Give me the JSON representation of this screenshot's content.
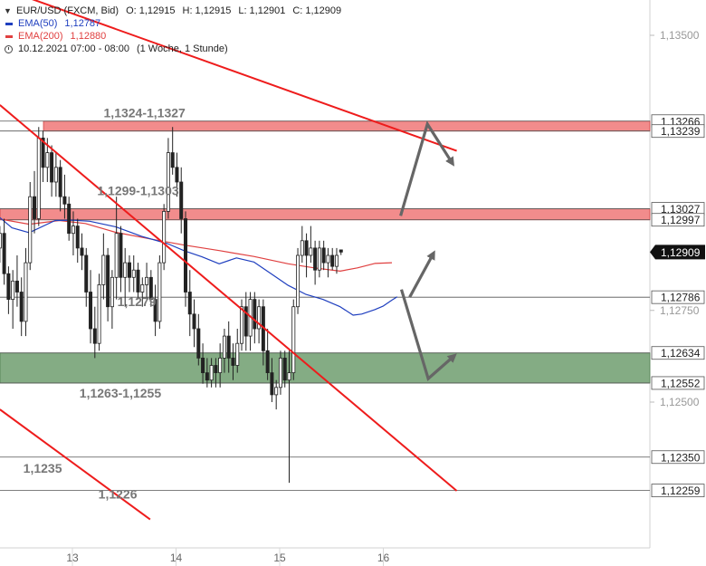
{
  "legend": {
    "instrument": "EUR/USD (FXCM, Bid)",
    "ohlc": {
      "o": "O: 1,12915",
      "h": "H: 1,12915",
      "l": "L: 1,12901",
      "c": "C: 1,12909"
    },
    "ema50_label": "EMA(50)",
    "ema50_value": "1,12787",
    "ema200_label": "EMA(200)",
    "ema200_value": "1,12880",
    "period": "10.12.2021 07:00 - 08:00",
    "period_note": "(1 Woche, 1 Stunde)"
  },
  "colors": {
    "ema50": "#1f3fbf",
    "ema200": "#e04040",
    "trendline": "#ee1c1c",
    "resistance_zone": "#f07878",
    "support_zone": "#6f9e6f",
    "arrow": "#666666",
    "candle": "#222222",
    "current_price_bg": "#111111"
  },
  "chart_data": {
    "type": "candlestick",
    "y_axis": {
      "range": [
        1.1218,
        1.1362
      ],
      "ticks": [
        {
          "value": 1.135,
          "label": "1,13500"
        },
        {
          "value": 1.1275,
          "label": "1,12750"
        },
        {
          "value": 1.125,
          "label": "1,12500"
        }
      ]
    },
    "x_axis": {
      "ticks": [
        {
          "hour": 0,
          "label": "13"
        },
        {
          "hour": 24,
          "label": "14"
        },
        {
          "hour": 48,
          "label": "15"
        },
        {
          "hour": 72,
          "label": "16"
        }
      ]
    },
    "horizontal_levels": [
      {
        "value": 1.13266,
        "label": "1,13266"
      },
      {
        "value": 1.13239,
        "label": "1,13239"
      },
      {
        "value": 1.13027,
        "label": "1,13027"
      },
      {
        "value": 1.12997,
        "label": "1,12997"
      },
      {
        "value": 1.12786,
        "label": "1,12786"
      },
      {
        "value": 1.12634,
        "label": "1,12634"
      },
      {
        "value": 1.12552,
        "label": "1,12552"
      },
      {
        "value": 1.1235,
        "label": "1,12350"
      },
      {
        "value": 1.12259,
        "label": "1,12259"
      }
    ],
    "current_price": {
      "value": 1.12909,
      "label": "1,12909"
    },
    "zones": [
      {
        "name": "resistance-upper",
        "from": 1.13239,
        "to": 1.13266,
        "x_start_hour": -6.7
      },
      {
        "name": "resistance-lower",
        "from": 1.12997,
        "to": 1.13027,
        "x_start_hour": -16.8
      },
      {
        "name": "support",
        "from": 1.12552,
        "to": 1.12634,
        "x_start_hour": -16.8
      }
    ],
    "trendlines": [
      {
        "name": "upper-resistance-line",
        "points": [
          [
            -16.8,
            1.1363
          ],
          [
            89,
            1.13185
          ]
        ]
      },
      {
        "name": "middle-descending-line",
        "points": [
          [
            -16.8,
            1.1331
          ],
          [
            89,
            1.12258
          ]
        ]
      },
      {
        "name": "lower-descending-line",
        "points": [
          [
            -16.8,
            1.1248
          ],
          [
            18,
            1.1218
          ]
        ]
      }
    ],
    "annotations": [
      {
        "text": "1,1324-1,1327",
        "hour": 16.7,
        "price": 1.13277
      },
      {
        "text": "1,1299-1,1303",
        "hour": 15.2,
        "price": 1.13064
      },
      {
        "text": "1,1279",
        "hour": 14.9,
        "price": 1.12762
      },
      {
        "text": "1,1263-1,1255",
        "hour": 11.1,
        "price": 1.12512
      },
      {
        "text": "1,1235",
        "hour": -6.9,
        "price": 1.12308
      },
      {
        "text": "1,1226",
        "hour": 10.5,
        "price": 1.12237
      }
    ],
    "arrows": [
      {
        "name": "arrow-up-to-1-1324",
        "points": [
          [
            76,
            1.13008
          ],
          [
            82.2,
            1.13258
          ],
          [
            88,
            1.13151
          ]
        ]
      },
      {
        "name": "arrow-up-small",
        "points": [
          [
            78.1,
            1.12786
          ],
          [
            83.6,
            1.12905
          ]
        ]
      },
      {
        "name": "arrow-down-to-1-1263",
        "points": [
          [
            76.2,
            1.12807
          ],
          [
            82.4,
            1.12564
          ],
          [
            88.4,
            1.12626
          ]
        ]
      }
    ],
    "ema200": [
      [
        -16.8,
        1.12999
      ],
      [
        -10,
        1.12985
      ],
      [
        -3,
        1.12995
      ],
      [
        3,
        1.12987
      ],
      [
        10,
        1.12963
      ],
      [
        18,
        1.12945
      ],
      [
        26,
        1.12928
      ],
      [
        34,
        1.12913
      ],
      [
        42,
        1.12897
      ],
      [
        50,
        1.12877
      ],
      [
        56,
        1.12866
      ],
      [
        62,
        1.12857
      ],
      [
        66,
        1.12866
      ],
      [
        70,
        1.12878
      ],
      [
        74,
        1.1288
      ]
    ],
    "ema50": [
      [
        -16.8,
        1.13003
      ],
      [
        -14,
        1.12975
      ],
      [
        -10,
        1.12962
      ],
      [
        -4,
        1.12995
      ],
      [
        0,
        1.12996
      ],
      [
        4,
        1.12993
      ],
      [
        10,
        1.12978
      ],
      [
        16,
        1.12952
      ],
      [
        22,
        1.12932
      ],
      [
        26,
        1.12912
      ],
      [
        30,
        1.12896
      ],
      [
        34,
        1.12877
      ],
      [
        38,
        1.12893
      ],
      [
        42,
        1.12882
      ],
      [
        46,
        1.1285
      ],
      [
        50,
        1.12818
      ],
      [
        54,
        1.12794
      ],
      [
        58,
        1.1278
      ],
      [
        62,
        1.1276
      ],
      [
        65,
        1.12737
      ],
      [
        67,
        1.1274
      ],
      [
        70,
        1.12752
      ],
      [
        72,
        1.12762
      ],
      [
        74,
        1.12778
      ],
      [
        75.2,
        1.12787
      ]
    ],
    "candles_hour_step": 1,
    "candles_start_hour": -16.8,
    "candles": [
      [
        1.1292,
        1.1298,
        1.1288,
        1.1296
      ],
      [
        1.1296,
        1.13,
        1.1282,
        1.1285
      ],
      [
        1.1285,
        1.1287,
        1.1274,
        1.1278
      ],
      [
        1.1278,
        1.1286,
        1.127,
        1.1283
      ],
      [
        1.1283,
        1.129,
        1.1276,
        1.128
      ],
      [
        1.128,
        1.1284,
        1.1268,
        1.1272
      ],
      [
        1.1272,
        1.1292,
        1.1268,
        1.1288
      ],
      [
        1.1288,
        1.131,
        1.1286,
        1.1306
      ],
      [
        1.1306,
        1.1313,
        1.1296,
        1.13
      ],
      [
        1.13,
        1.1325,
        1.1298,
        1.1322
      ],
      [
        1.1322,
        1.1324,
        1.131,
        1.1314
      ],
      [
        1.1314,
        1.1322,
        1.131,
        1.1318
      ],
      [
        1.1318,
        1.132,
        1.1306,
        1.131
      ],
      [
        1.131,
        1.1318,
        1.1306,
        1.1314
      ],
      [
        1.1314,
        1.1316,
        1.1302,
        1.1306
      ],
      [
        1.1306,
        1.1312,
        1.13,
        1.1304
      ],
      [
        1.1304,
        1.1306,
        1.1294,
        1.1296
      ],
      [
        1.1296,
        1.1302,
        1.129,
        1.1298
      ],
      [
        1.1298,
        1.13,
        1.1288,
        1.1292
      ],
      [
        1.1292,
        1.1296,
        1.1286,
        1.129
      ],
      [
        1.129,
        1.1292,
        1.1276,
        1.128
      ],
      [
        1.128,
        1.1286,
        1.1266,
        1.127
      ],
      [
        1.127,
        1.1276,
        1.1262,
        1.1266
      ],
      [
        1.1266,
        1.1285,
        1.1264,
        1.1282
      ],
      [
        1.1282,
        1.1296,
        1.1278,
        1.129
      ],
      [
        1.129,
        1.1292,
        1.1272,
        1.1276
      ],
      [
        1.1276,
        1.1286,
        1.127,
        1.1284
      ],
      [
        1.1284,
        1.1306,
        1.1278,
        1.1296
      ],
      [
        1.1296,
        1.1298,
        1.128,
        1.1284
      ],
      [
        1.1284,
        1.1292,
        1.1276,
        1.1288
      ],
      [
        1.1288,
        1.129,
        1.128,
        1.1284
      ],
      [
        1.1284,
        1.129,
        1.128,
        1.1286
      ],
      [
        1.1286,
        1.1288,
        1.1278,
        1.128
      ],
      [
        1.128,
        1.1284,
        1.1276,
        1.1282
      ],
      [
        1.1282,
        1.1288,
        1.1278,
        1.1284
      ],
      [
        1.1284,
        1.1286,
        1.1276,
        1.1278
      ],
      [
        1.1278,
        1.1282,
        1.1268,
        1.1272
      ],
      [
        1.1272,
        1.129,
        1.127,
        1.1288
      ],
      [
        1.1288,
        1.1304,
        1.1286,
        1.1302
      ],
      [
        1.1302,
        1.1322,
        1.13,
        1.1318
      ],
      [
        1.1318,
        1.1325,
        1.1312,
        1.1314
      ],
      [
        1.1314,
        1.1318,
        1.1306,
        1.131
      ],
      [
        1.131,
        1.1314,
        1.1296,
        1.13
      ],
      [
        1.13,
        1.1302,
        1.1276,
        1.128
      ],
      [
        1.128,
        1.1286,
        1.1268,
        1.1274
      ],
      [
        1.1274,
        1.1278,
        1.1265,
        1.127
      ],
      [
        1.127,
        1.1274,
        1.126,
        1.1262
      ],
      [
        1.1262,
        1.1266,
        1.1255,
        1.1258
      ],
      [
        1.1258,
        1.1262,
        1.1254,
        1.1256
      ],
      [
        1.1256,
        1.1262,
        1.1254,
        1.126
      ],
      [
        1.126,
        1.1262,
        1.1254,
        1.1258
      ],
      [
        1.1258,
        1.1266,
        1.1254,
        1.1262
      ],
      [
        1.1262,
        1.127,
        1.1258,
        1.1268
      ],
      [
        1.1268,
        1.1272,
        1.1258,
        1.1262
      ],
      [
        1.1262,
        1.1266,
        1.1256,
        1.126
      ],
      [
        1.126,
        1.127,
        1.1258,
        1.1266
      ],
      [
        1.1266,
        1.1278,
        1.1264,
        1.1276
      ],
      [
        1.1276,
        1.128,
        1.1264,
        1.1268
      ],
      [
        1.1268,
        1.128,
        1.1264,
        1.1278
      ],
      [
        1.1278,
        1.128,
        1.1266,
        1.127
      ],
      [
        1.127,
        1.1278,
        1.1266,
        1.1276
      ],
      [
        1.1276,
        1.1278,
        1.126,
        1.1264
      ],
      [
        1.1264,
        1.127,
        1.1256,
        1.1258
      ],
      [
        1.1258,
        1.1262,
        1.125,
        1.1252
      ],
      [
        1.1252,
        1.1256,
        1.1248,
        1.1254
      ],
      [
        1.1254,
        1.1264,
        1.1252,
        1.1262
      ],
      [
        1.1262,
        1.1264,
        1.1254,
        1.1256
      ],
      [
        1.1256,
        1.1264,
        1.1228,
        1.1258
      ],
      [
        1.1258,
        1.1278,
        1.1256,
        1.1276
      ],
      [
        1.1276,
        1.1292,
        1.1274,
        1.129
      ],
      [
        1.129,
        1.1298,
        1.1288,
        1.1294
      ],
      [
        1.1294,
        1.1296,
        1.1284,
        1.129
      ],
      [
        1.129,
        1.1298,
        1.1288,
        1.1292
      ],
      [
        1.1292,
        1.1294,
        1.1282,
        1.1286
      ],
      [
        1.1286,
        1.1294,
        1.1284,
        1.1292
      ],
      [
        1.1292,
        1.1294,
        1.1286,
        1.1288
      ],
      [
        1.1288,
        1.1292,
        1.1284,
        1.129
      ],
      [
        1.129,
        1.1292,
        1.1286,
        1.1287
      ],
      [
        1.1287,
        1.1292,
        1.1285,
        1.129
      ],
      [
        1.12915,
        1.12915,
        1.12901,
        1.12909
      ]
    ]
  }
}
